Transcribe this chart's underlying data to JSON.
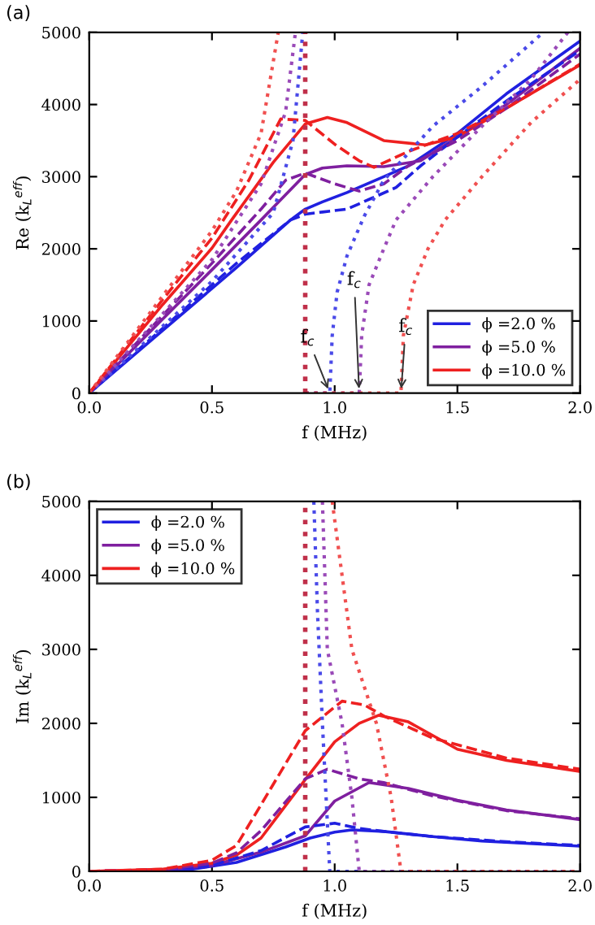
{
  "chart_data": [
    {
      "type": "line",
      "title": "(a)",
      "xlabel": "f (MHz)",
      "ylabel": "Re (k$_{L}$$^{eff}$)",
      "xlim": [
        0,
        2
      ],
      "ylim": [
        0,
        5000
      ],
      "xticks": [
        {
          "value": 0,
          "label": "0.0"
        },
        {
          "value": 0.5,
          "label": "0.5"
        },
        {
          "value": 1,
          "label": "1.0"
        },
        {
          "value": 1.5,
          "label": "1.5"
        },
        {
          "value": 2,
          "label": "2.0"
        }
      ],
      "yticks": [
        0,
        1000,
        2000,
        3000,
        4000,
        5000
      ],
      "grid": false,
      "legend": "bottom right",
      "marker": "none",
      "ref_lines": [
        {
          "axis": "x",
          "value": 0.88,
          "label": null,
          "color": "#c0304a",
          "line_style": "dotted"
        }
      ],
      "annotations": [
        {
          "text": "f$_{c}$",
          "x": 0.98,
          "y": 0
        },
        {
          "text": "f$_{c}$",
          "x": 1.1,
          "y": 0
        },
        {
          "text": "f$_{c}$",
          "x": 1.27,
          "y": 0
        }
      ],
      "series": [
        {
          "name": "ϕ =2.0 %",
          "color": "#2020e0",
          "line_style": "solid",
          "x": [
            0,
            0.3,
            0.6,
            0.82,
            0.88,
            0.95,
            1.05,
            1.2,
            1.3,
            1.5,
            1.7,
            2.0
          ],
          "values": [
            0,
            870,
            1740,
            2400,
            2550,
            2650,
            2780,
            3000,
            3150,
            3600,
            4150,
            4880
          ]
        },
        {
          "name": "ϕ =5.0 %",
          "color": "#7f1f9f",
          "line_style": "solid",
          "x": [
            0,
            0.3,
            0.5,
            0.7,
            0.88,
            0.95,
            1.05,
            1.2,
            1.35,
            1.5,
            1.7,
            2.0
          ],
          "values": [
            0,
            1030,
            1710,
            2400,
            3030,
            3120,
            3150,
            3140,
            3220,
            3550,
            4000,
            4780
          ]
        },
        {
          "name": "ϕ =10.0 %",
          "color": "#ee2020",
          "line_style": "solid",
          "x": [
            0,
            0.3,
            0.5,
            0.58,
            0.75,
            0.88,
            0.97,
            1.05,
            1.2,
            1.37,
            1.5,
            1.7,
            2.0
          ],
          "values": [
            0,
            1230,
            2010,
            2400,
            3200,
            3730,
            3820,
            3750,
            3500,
            3440,
            3550,
            3950,
            4550
          ]
        },
        {
          "color": "#2020e0",
          "line_style": "dashed",
          "x": [
            0,
            0.3,
            0.6,
            0.82,
            0.88,
            0.95,
            1.05,
            1.15,
            1.25,
            1.35,
            1.5,
            1.7,
            2.0
          ],
          "values": [
            0,
            900,
            1800,
            2400,
            2480,
            2510,
            2550,
            2700,
            2850,
            3150,
            3550,
            4050,
            4750
          ]
        },
        {
          "color": "#7f1f9f",
          "line_style": "dashed",
          "x": [
            0,
            0.3,
            0.5,
            0.7,
            0.8,
            0.88,
            1.0,
            1.1,
            1.2,
            1.3,
            1.5,
            1.7,
            2.0
          ],
          "values": [
            0,
            1080,
            1800,
            2550,
            2950,
            3050,
            2900,
            2800,
            2900,
            3150,
            3500,
            3950,
            4700
          ]
        },
        {
          "color": "#ee2020",
          "line_style": "dashed",
          "x": [
            0,
            0.3,
            0.5,
            0.65,
            0.78,
            0.88,
            1.0,
            1.1,
            1.16,
            1.3,
            1.5,
            1.7,
            2.0
          ],
          "values": [
            0,
            1300,
            2150,
            2950,
            3800,
            3780,
            3450,
            3220,
            3130,
            3350,
            3600,
            3950,
            4560
          ]
        },
        {
          "color": "#4a4ae8",
          "line_style": "dotted",
          "x": [
            0,
            0.3,
            0.5,
            0.75,
            0.83,
            0.87
          ],
          "values": [
            0,
            930,
            1550,
            2500,
            3500,
            5000
          ]
        },
        {
          "color": "#9a4ab8",
          "line_style": "dotted",
          "x": [
            0,
            0.3,
            0.5,
            0.7,
            0.8,
            0.84
          ],
          "values": [
            0,
            1100,
            1850,
            2900,
            3900,
            5000
          ]
        },
        {
          "color": "#f05050",
          "line_style": "dotted",
          "x": [
            0,
            0.3,
            0.5,
            0.6,
            0.7,
            0.77
          ],
          "values": [
            0,
            1350,
            2250,
            2800,
            3600,
            5000
          ]
        },
        {
          "color": "#4a4ae8",
          "line_style": "dotted",
          "x": [
            0.88,
            0.98,
            0.99,
            1.01,
            1.05,
            1.12,
            1.2,
            1.4,
            1.6,
            1.85
          ],
          "values": [
            0,
            0,
            800,
            1400,
            1900,
            2450,
            2950,
            3700,
            4250,
            5000
          ]
        },
        {
          "color": "#9a4ab8",
          "line_style": "dotted",
          "x": [
            0.88,
            1.1,
            1.11,
            1.14,
            1.2,
            1.25,
            1.4,
            1.6,
            1.8,
            1.95
          ],
          "values": [
            0,
            0,
            800,
            1500,
            2000,
            2400,
            3000,
            3700,
            4350,
            5000
          ]
        },
        {
          "color": "#f05050",
          "line_style": "dotted",
          "x": [
            0.88,
            1.27,
            1.28,
            1.32,
            1.38,
            1.45,
            1.6,
            1.8,
            2.0
          ],
          "values": [
            0,
            0,
            800,
            1500,
            2000,
            2400,
            3000,
            3750,
            4350
          ]
        }
      ]
    },
    {
      "type": "line",
      "title": "(b)",
      "xlabel": "f (MHz)",
      "ylabel": "Im (k$_{L}$$^{eff}$)",
      "xlim": [
        0,
        2
      ],
      "ylim": [
        0,
        5000
      ],
      "xticks": [
        {
          "value": 0,
          "label": "0.0"
        },
        {
          "value": 0.5,
          "label": "0.5"
        },
        {
          "value": 1,
          "label": "1.0"
        },
        {
          "value": 1.5,
          "label": "1.5"
        },
        {
          "value": 2,
          "label": "2.0"
        }
      ],
      "yticks": [
        0,
        1000,
        2000,
        3000,
        4000,
        5000
      ],
      "grid": false,
      "legend": "top left",
      "marker": "none",
      "ref_lines": [
        {
          "axis": "x",
          "value": 0.88,
          "label": null,
          "color": "#c0304a",
          "line_style": "dotted"
        }
      ],
      "series": [
        {
          "name": "ϕ =2.0 %",
          "color": "#2020e0",
          "line_style": "solid",
          "x": [
            0,
            0.4,
            0.6,
            0.8,
            0.9,
            1.0,
            1.07,
            1.2,
            1.4,
            1.6,
            2.0
          ],
          "values": [
            0,
            20,
            120,
            330,
            450,
            530,
            560,
            540,
            470,
            410,
            340
          ]
        },
        {
          "name": "ϕ =5.0 %",
          "color": "#7f1f9f",
          "line_style": "solid",
          "x": [
            0,
            0.3,
            0.5,
            0.7,
            0.88,
            1.0,
            1.14,
            1.3,
            1.5,
            1.7,
            2.0
          ],
          "values": [
            0,
            20,
            80,
            260,
            480,
            950,
            1200,
            1120,
            960,
            830,
            700
          ]
        },
        {
          "name": "ϕ =10.0 %",
          "color": "#ee2020",
          "line_style": "solid",
          "x": [
            0,
            0.3,
            0.5,
            0.6,
            0.7,
            0.88,
            1.0,
            1.1,
            1.18,
            1.3,
            1.5,
            1.7,
            2.0
          ],
          "values": [
            0,
            30,
            110,
            220,
            450,
            1240,
            1750,
            2000,
            2110,
            2020,
            1650,
            1500,
            1350
          ]
        },
        {
          "color": "#2020e0",
          "line_style": "dashed",
          "x": [
            0,
            0.3,
            0.5,
            0.7,
            0.88,
            1.0,
            1.1,
            1.2,
            1.4,
            1.7,
            2.0
          ],
          "values": [
            0,
            20,
            80,
            280,
            600,
            650,
            580,
            540,
            470,
            400,
            350
          ]
        },
        {
          "color": "#7f1f9f",
          "line_style": "dashed",
          "x": [
            0,
            0.3,
            0.5,
            0.6,
            0.7,
            0.88,
            0.97,
            1.1,
            1.2,
            1.4,
            1.7,
            2.0
          ],
          "values": [
            0,
            20,
            110,
            250,
            550,
            1250,
            1380,
            1250,
            1200,
            1020,
            820,
            710
          ]
        },
        {
          "color": "#ee2020",
          "line_style": "dashed",
          "x": [
            0,
            0.3,
            0.5,
            0.6,
            0.7,
            0.88,
            1.03,
            1.12,
            1.2,
            1.4,
            1.7,
            2.0
          ],
          "values": [
            0,
            30,
            150,
            350,
            900,
            1900,
            2300,
            2250,
            2100,
            1800,
            1530,
            1380
          ]
        },
        {
          "color": "#4a4ae8",
          "line_style": "dotted",
          "x": [
            0.915,
            0.93,
            0.95,
            0.98,
            2.0
          ],
          "values": [
            5000,
            3500,
            2000,
            0,
            0
          ]
        },
        {
          "color": "#9a4ab8",
          "line_style": "dotted",
          "x": [
            0.95,
            0.97,
            1.03,
            1.07,
            1.1,
            2.0
          ],
          "values": [
            5000,
            3000,
            2000,
            1000,
            0,
            0
          ]
        },
        {
          "color": "#f05050",
          "line_style": "dotted",
          "x": [
            0.99,
            1.07,
            1.17,
            1.23,
            1.27,
            2.0
          ],
          "values": [
            5000,
            3000,
            2000,
            1000,
            0,
            0
          ]
        }
      ]
    }
  ]
}
